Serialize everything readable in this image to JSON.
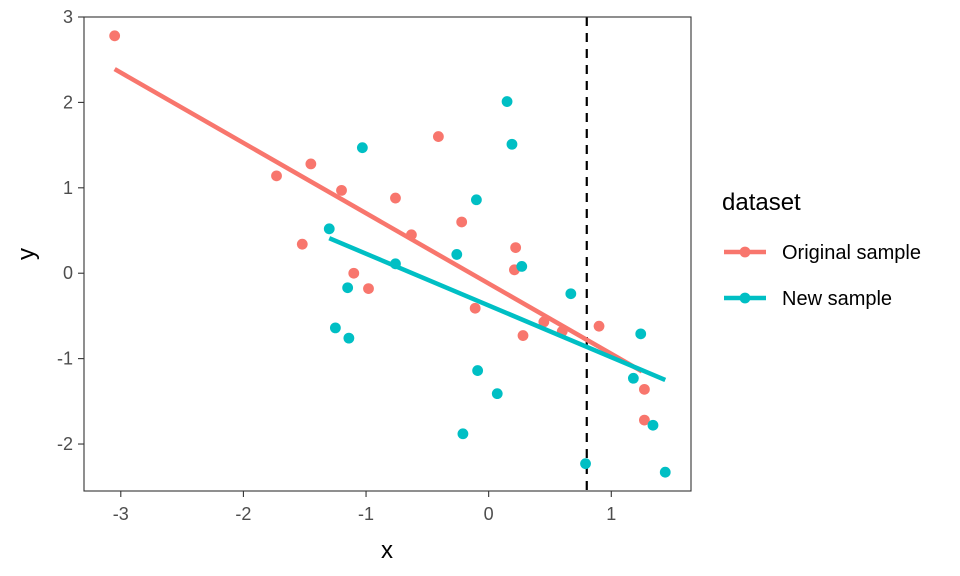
{
  "chart_data": {
    "type": "scatter",
    "xlabel": "x",
    "ylabel": "y",
    "xlim": [
      -3.3,
      1.65
    ],
    "ylim": [
      -2.55,
      3.0
    ],
    "x_ticks": [
      -3,
      -2,
      -1,
      0,
      1
    ],
    "y_ticks": [
      -2,
      -1,
      0,
      1,
      2,
      3
    ],
    "x_tick_labels": [
      "-3",
      "-2",
      "-1",
      "0",
      "1"
    ],
    "y_tick_labels": [
      "-2",
      "-1",
      "0",
      "1",
      "2",
      "3"
    ],
    "grid": false,
    "legend": {
      "title": "dataset",
      "position": "right",
      "entries": [
        "Original sample",
        "New sample"
      ]
    },
    "reference_line": {
      "x": 0.8,
      "style": "dashed",
      "color": "#000000"
    },
    "series": [
      {
        "name": "Original sample",
        "color": "#F8766D",
        "points": [
          [
            -3.05,
            2.78
          ],
          [
            -1.73,
            1.14
          ],
          [
            -1.45,
            1.28
          ],
          [
            -1.52,
            0.34
          ],
          [
            -1.2,
            0.97
          ],
          [
            -1.1,
            0.0
          ],
          [
            -0.98,
            -0.18
          ],
          [
            -0.76,
            0.88
          ],
          [
            -0.63,
            0.45
          ],
          [
            -0.41,
            1.6
          ],
          [
            -0.22,
            0.6
          ],
          [
            -0.11,
            -0.41
          ],
          [
            0.22,
            0.3
          ],
          [
            0.21,
            0.04
          ],
          [
            0.28,
            -0.73
          ],
          [
            0.45,
            -0.57
          ],
          [
            0.6,
            -0.68
          ],
          [
            0.9,
            -0.62
          ],
          [
            1.27,
            -1.36
          ],
          [
            1.27,
            -1.72
          ]
        ],
        "fit_line": {
          "x": [
            -3.05,
            1.25
          ],
          "y": [
            2.39,
            -1.15
          ]
        }
      },
      {
        "name": "New sample",
        "color": "#00BFC4",
        "points": [
          [
            -1.3,
            0.52
          ],
          [
            -1.25,
            -0.64
          ],
          [
            -1.15,
            -0.17
          ],
          [
            -1.14,
            -0.76
          ],
          [
            -1.03,
            1.47
          ],
          [
            -0.76,
            0.11
          ],
          [
            -0.26,
            0.22
          ],
          [
            -0.21,
            -1.88
          ],
          [
            -0.1,
            0.86
          ],
          [
            -0.09,
            -1.14
          ],
          [
            0.07,
            -1.41
          ],
          [
            0.15,
            2.01
          ],
          [
            0.19,
            1.51
          ],
          [
            0.27,
            0.08
          ],
          [
            0.67,
            -0.24
          ],
          [
            0.79,
            -2.23
          ],
          [
            1.18,
            -1.23
          ],
          [
            1.24,
            -0.71
          ],
          [
            1.34,
            -1.78
          ],
          [
            1.44,
            -2.33
          ]
        ],
        "fit_line": {
          "x": [
            -1.3,
            1.44
          ],
          "y": [
            0.41,
            -1.25
          ]
        }
      }
    ]
  }
}
